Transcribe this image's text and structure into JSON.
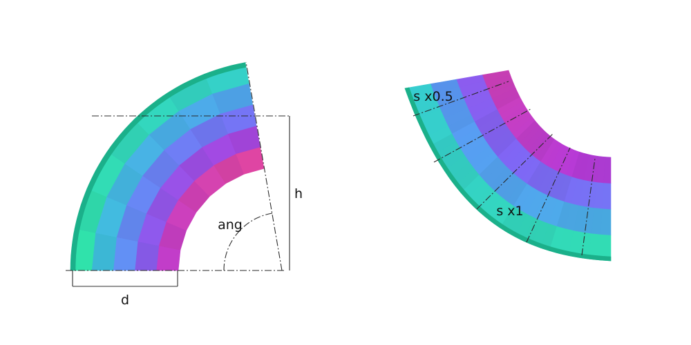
{
  "left_figure": {
    "labels": {
      "d": "d",
      "h": "h",
      "ang": "ang"
    },
    "radial_segments": 5,
    "arc_segments": 7
  },
  "right_figure": {
    "labels": {
      "top_scale": "s x0.5",
      "bottom_scale": "s x1"
    },
    "radial_segments": 4,
    "arc_segments": 5
  },
  "palette": {
    "outer_to_inner": [
      "#2ee8a0",
      "#38c8d8",
      "#5a9af5",
      "#8066f5",
      "#b63ad8",
      "#f04a8e"
    ],
    "outer_edge": "#1bb08a"
  }
}
